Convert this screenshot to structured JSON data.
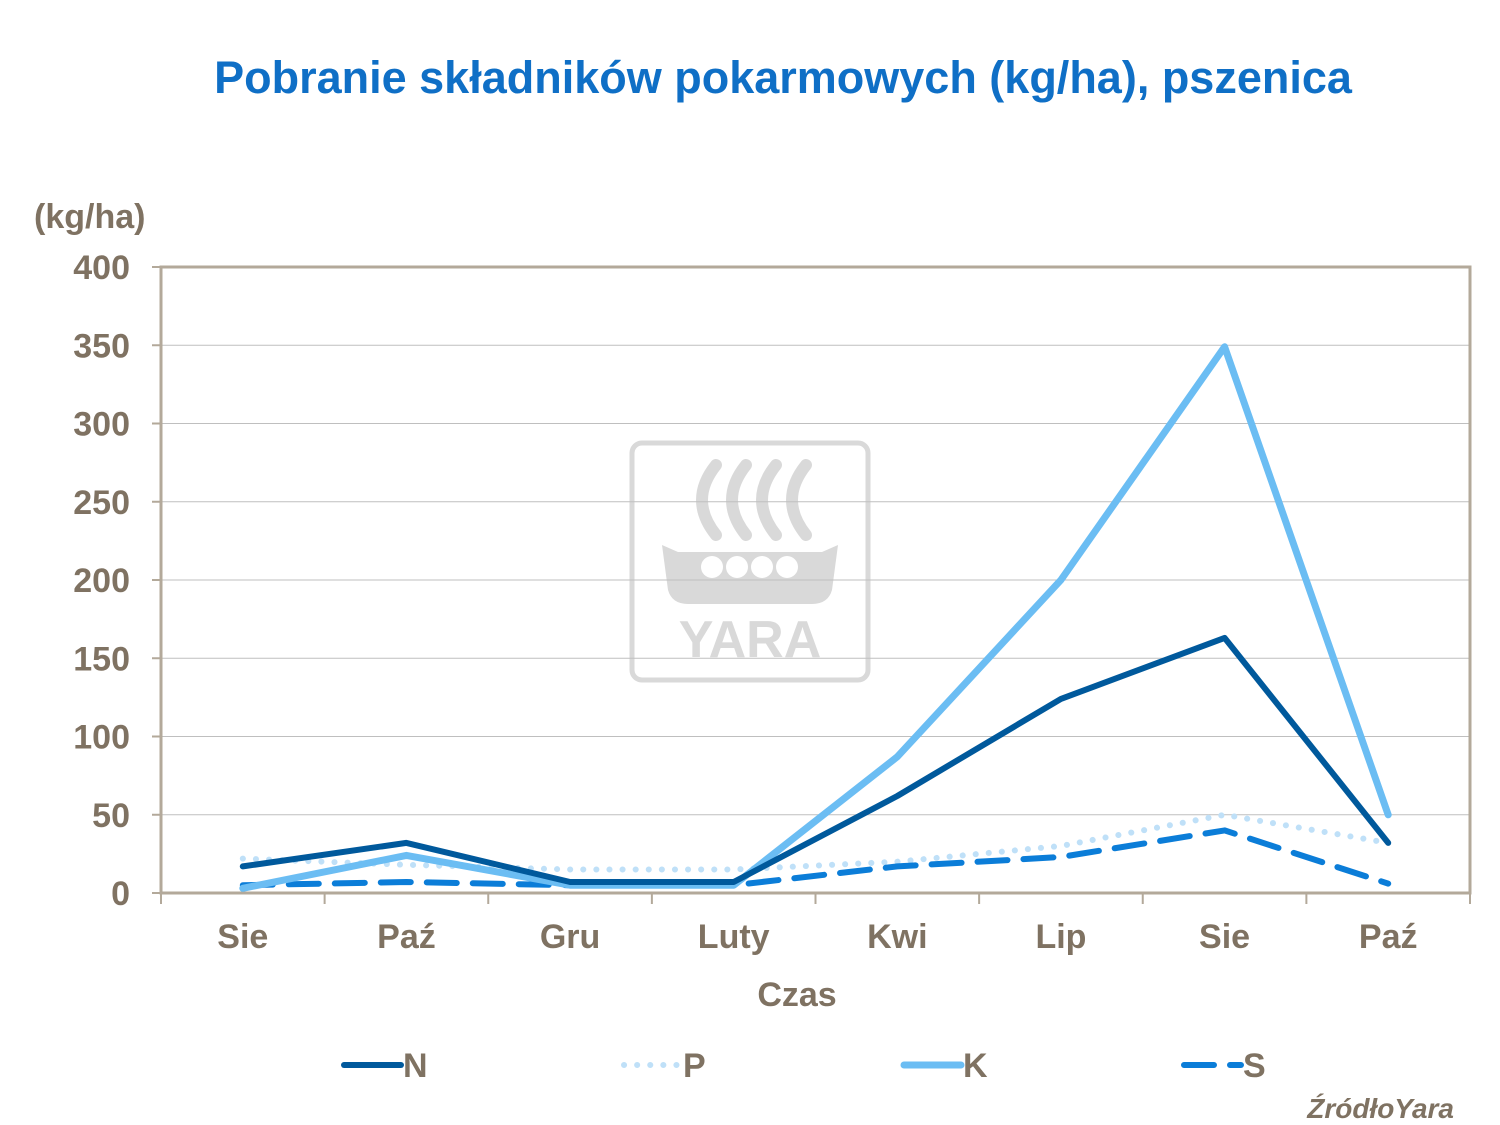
{
  "title": "Pobranie składników pokarmowych (kg/ha), pszenica",
  "source": "ŹródłoYara",
  "watermark": {
    "text": "YARA",
    "icon": "yara-viking-ship-logo"
  },
  "colors": {
    "title": "#0f6fc6",
    "axis_text": "#7f7262",
    "plot_border": "#b3a99a",
    "grid": "#bfbfbf",
    "watermark": "#d9d9d9"
  },
  "chart_data": {
    "type": "line",
    "title": "Pobranie składników pokarmowych (kg/ha), pszenica",
    "xlabel": "Czas",
    "ylabel": "(kg/ha)",
    "categories": [
      "Sie",
      "Paź",
      "Gru",
      "Luty",
      "Kwi",
      "Lip",
      "Sie",
      "Paź"
    ],
    "ylim": [
      0,
      400
    ],
    "yticks": [
      0,
      50,
      100,
      150,
      200,
      250,
      300,
      350,
      400
    ],
    "grid": true,
    "legend_position": "bottom",
    "series": [
      {
        "name": "N",
        "color": "#00599c",
        "style": "solid",
        "values": [
          17,
          32,
          7,
          7,
          62,
          124,
          163,
          32
        ]
      },
      {
        "name": "P",
        "color": "#bfe0f8",
        "style": "dotted",
        "values": [
          22,
          18,
          15,
          15,
          20,
          30,
          50,
          32
        ]
      },
      {
        "name": "K",
        "color": "#6bbdf3",
        "style": "solid",
        "values": [
          3,
          24,
          5,
          5,
          87,
          200,
          349,
          50
        ]
      },
      {
        "name": "S",
        "color": "#0b7dd8",
        "style": "dashed",
        "values": [
          5,
          7,
          5,
          5,
          17,
          23,
          40,
          6
        ]
      }
    ]
  }
}
